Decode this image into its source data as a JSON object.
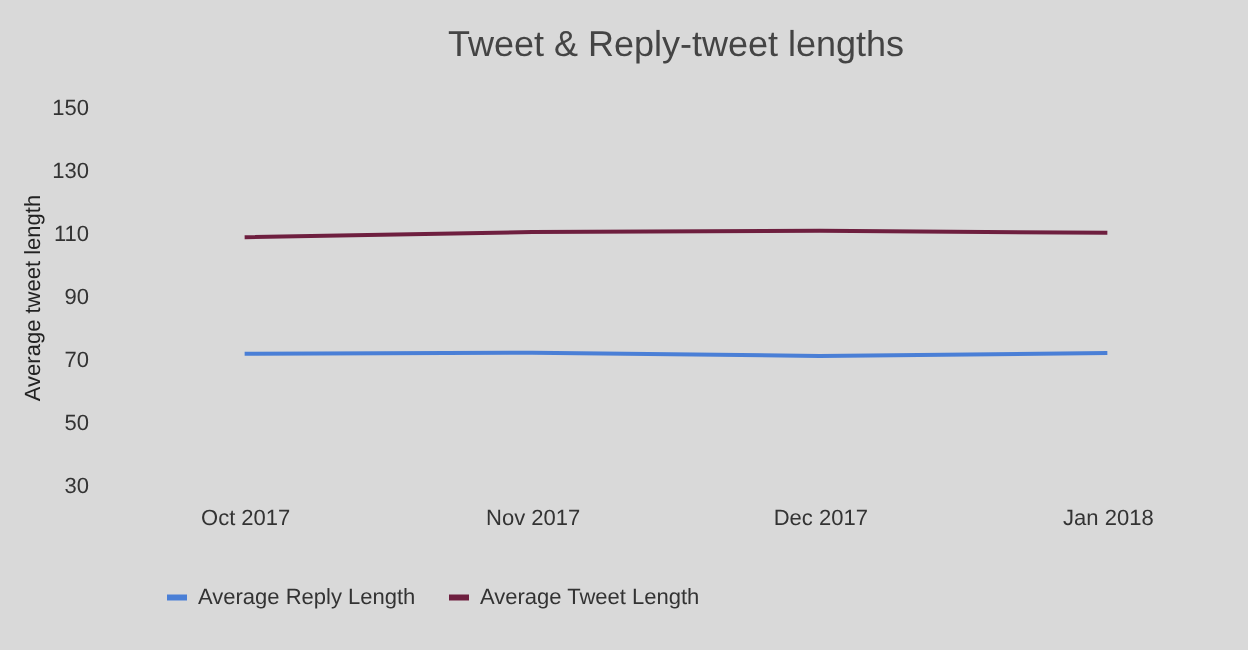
{
  "chart_data": {
    "type": "line",
    "title": "Tweet & Reply-tweet lengths",
    "ylabel": "Average tweet length",
    "categories": [
      "Oct 2017",
      "Nov 2017",
      "Dec 2017",
      "Jan 2018"
    ],
    "series": [
      {
        "name": "Average Reply Length",
        "color": "#4a7fd6",
        "values": [
          72,
          72.3,
          71.3,
          72.2
        ]
      },
      {
        "name": "Average Tweet Length",
        "color": "#6e1f3f",
        "values": [
          109,
          110.6,
          111,
          110.4
        ]
      }
    ],
    "ylim": [
      30,
      150
    ],
    "yticks": [
      30,
      50,
      70,
      90,
      110,
      130,
      150
    ],
    "legend": "bottom",
    "marker": "none",
    "line_style": "solid"
  }
}
